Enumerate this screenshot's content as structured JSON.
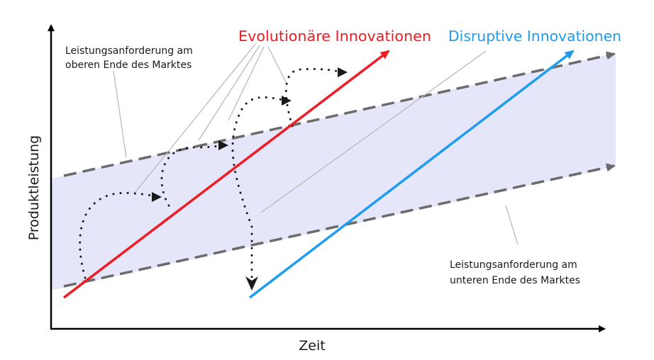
{
  "diagram": {
    "y_axis_label": "Produktleistung",
    "x_axis_label": "Zeit",
    "upper_label_line1": "Leistungsanforderung am",
    "upper_label_line2": "oberen Ende des Marktes",
    "lower_label_line1": "Leistungsanforderung am",
    "lower_label_line2": "unteren Ende des Marktes",
    "evolutionary_title": "Evolutionäre Innovationen",
    "disruptive_title": "Disruptive Innovationen"
  },
  "colors": {
    "band_fill": "#e6e6fa",
    "dashed_line": "#6b6b6b",
    "evolutionary": "#ee1c24",
    "disruptive": "#1e9cf0",
    "axis": "#000000",
    "leader_line": "#b5b5b5",
    "dotted_path": "#1a1a1a"
  }
}
